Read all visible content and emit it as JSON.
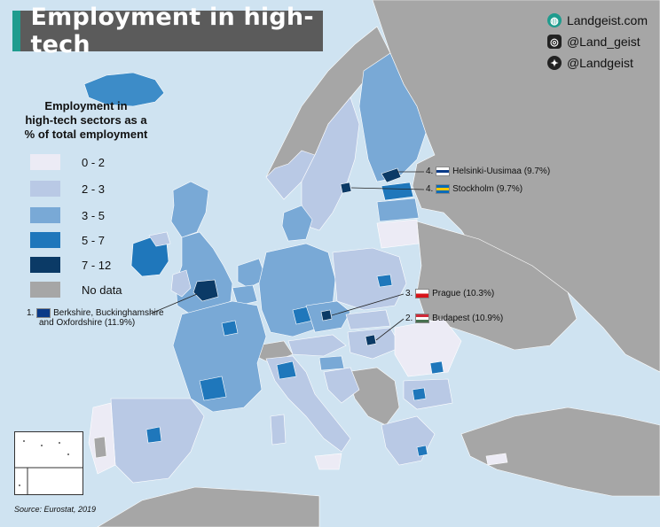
{
  "title": "Employment in high-tech",
  "social": {
    "website": "Landgeist.com",
    "instagram": "@Land_geist",
    "twitter": "@Landgeist",
    "website_icon": "globe-icon",
    "instagram_icon": "instagram-icon",
    "twitter_icon": "twitter-icon"
  },
  "legend": {
    "title_lines": [
      "Employment in",
      "high-tech sectors as a",
      "% of total employment"
    ],
    "items": [
      {
        "label": "0 - 2",
        "color": "#ecebf5"
      },
      {
        "label": "2 - 3",
        "color": "#b9c9e5"
      },
      {
        "label": "3 - 5",
        "color": "#79a9d6"
      },
      {
        "label": "5 - 7",
        "color": "#1f77bb"
      },
      {
        "label": "7 - 12",
        "color": "#0b3a66"
      },
      {
        "label": "No data",
        "color": "#a6a6a6"
      }
    ]
  },
  "colors": {
    "sea": "#cfe3f1",
    "non_eu_land": "#a6a6a6",
    "border": "#ffffff",
    "title_bg": "#5b5b5b",
    "title_accent": "#1f9c8e"
  },
  "callouts": [
    {
      "rank": "1.",
      "flag": "uk",
      "text": "Berkshire, Buckinghamshire",
      "text2": "and Oxfordshire (11.9%)"
    },
    {
      "rank": "2.",
      "flag": "hu",
      "text": "Budapest (10.9%)"
    },
    {
      "rank": "3.",
      "flag": "cz",
      "text": "Prague (10.3%)"
    },
    {
      "rank": "4.",
      "flag": "fi",
      "text": "Helsinki-Uusimaa (9.7%)"
    },
    {
      "rank": "4.",
      "flag": "se",
      "text": "Stockholm (9.7%)"
    }
  ],
  "source": "Source: Eurostat, 2019"
}
